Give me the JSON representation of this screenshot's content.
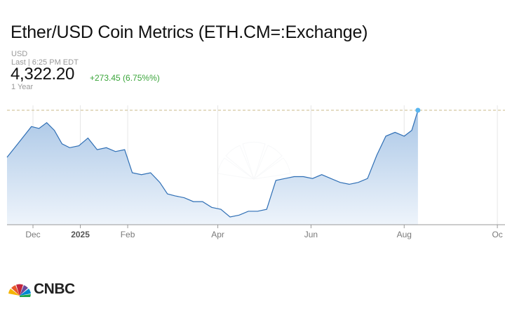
{
  "header": {
    "title": "Ether/USD Coin Metrics (ETH.CM=:Exchange)",
    "currency": "USD",
    "last_line": "Last | 6:25 PM EDT",
    "price": "4,322.20",
    "change": "+273.45 (6.75%%)",
    "period": "1 Year"
  },
  "colors": {
    "line": "#2f6fb5",
    "fill_top": "#a9c6e6",
    "fill_bottom": "#eef4fb",
    "change_positive": "#3aa53a",
    "marker": "#59b6f0",
    "reference_line": "#c9b98a"
  },
  "logo": {
    "text": "CNBC",
    "icon": "peacock-icon"
  },
  "chart_data": {
    "type": "area",
    "x": [
      "2024-11-14",
      "2024-11-20",
      "2024-11-25",
      "2024-11-30",
      "2024-12-05",
      "2024-12-10",
      "2024-12-15",
      "2024-12-20",
      "2024-12-25",
      "2024-12-31",
      "2025-01-06",
      "2025-01-12",
      "2025-01-18",
      "2025-01-24",
      "2025-01-30",
      "2025-02-04",
      "2025-02-10",
      "2025-02-16",
      "2025-02-22",
      "2025-02-27",
      "2025-03-04",
      "2025-03-10",
      "2025-03-16",
      "2025-03-22",
      "2025-03-28",
      "2025-04-03",
      "2025-04-09",
      "2025-04-15",
      "2025-04-21",
      "2025-04-27",
      "2025-05-03",
      "2025-05-09",
      "2025-05-15",
      "2025-05-21",
      "2025-05-27",
      "2025-06-02",
      "2025-06-08",
      "2025-06-14",
      "2025-06-20",
      "2025-06-26",
      "2025-07-02",
      "2025-07-08",
      "2025-07-14",
      "2025-07-20",
      "2025-07-26",
      "2025-08-01",
      "2025-08-06",
      "2025-08-10"
    ],
    "series": [
      {
        "values": [
          3100,
          3400,
          3650,
          3900,
          3850,
          4000,
          3800,
          3450,
          3350,
          3400,
          3600,
          3300,
          3350,
          3250,
          3300,
          2700,
          2650,
          2700,
          2450,
          2150,
          2100,
          2050,
          1950,
          1950,
          1800,
          1750,
          1550,
          1600,
          1700,
          1700,
          1750,
          2500,
          2550,
          2600,
          2600,
          2550,
          2650,
          2550,
          2450,
          2400,
          2450,
          2550,
          3150,
          3650,
          3750,
          3650,
          3800,
          4322.2
        ]
      }
    ],
    "xticks": [
      {
        "label": "Dec",
        "date": "2024-12-01"
      },
      {
        "label": "2025",
        "date": "2025-01-01"
      },
      {
        "label": "Feb",
        "date": "2025-02-01"
      },
      {
        "label": "Apr",
        "date": "2025-04-01"
      },
      {
        "label": "Jun",
        "date": "2025-06-01"
      },
      {
        "label": "Aug",
        "date": "2025-08-01"
      },
      {
        "label": "Oc",
        "date": "2025-10-01"
      }
    ],
    "xlim": [
      "2024-11-14",
      "2025-10-06"
    ],
    "ylim": [
      1350,
      4450
    ],
    "reference_value": 4322.2,
    "grid": "vertical"
  }
}
